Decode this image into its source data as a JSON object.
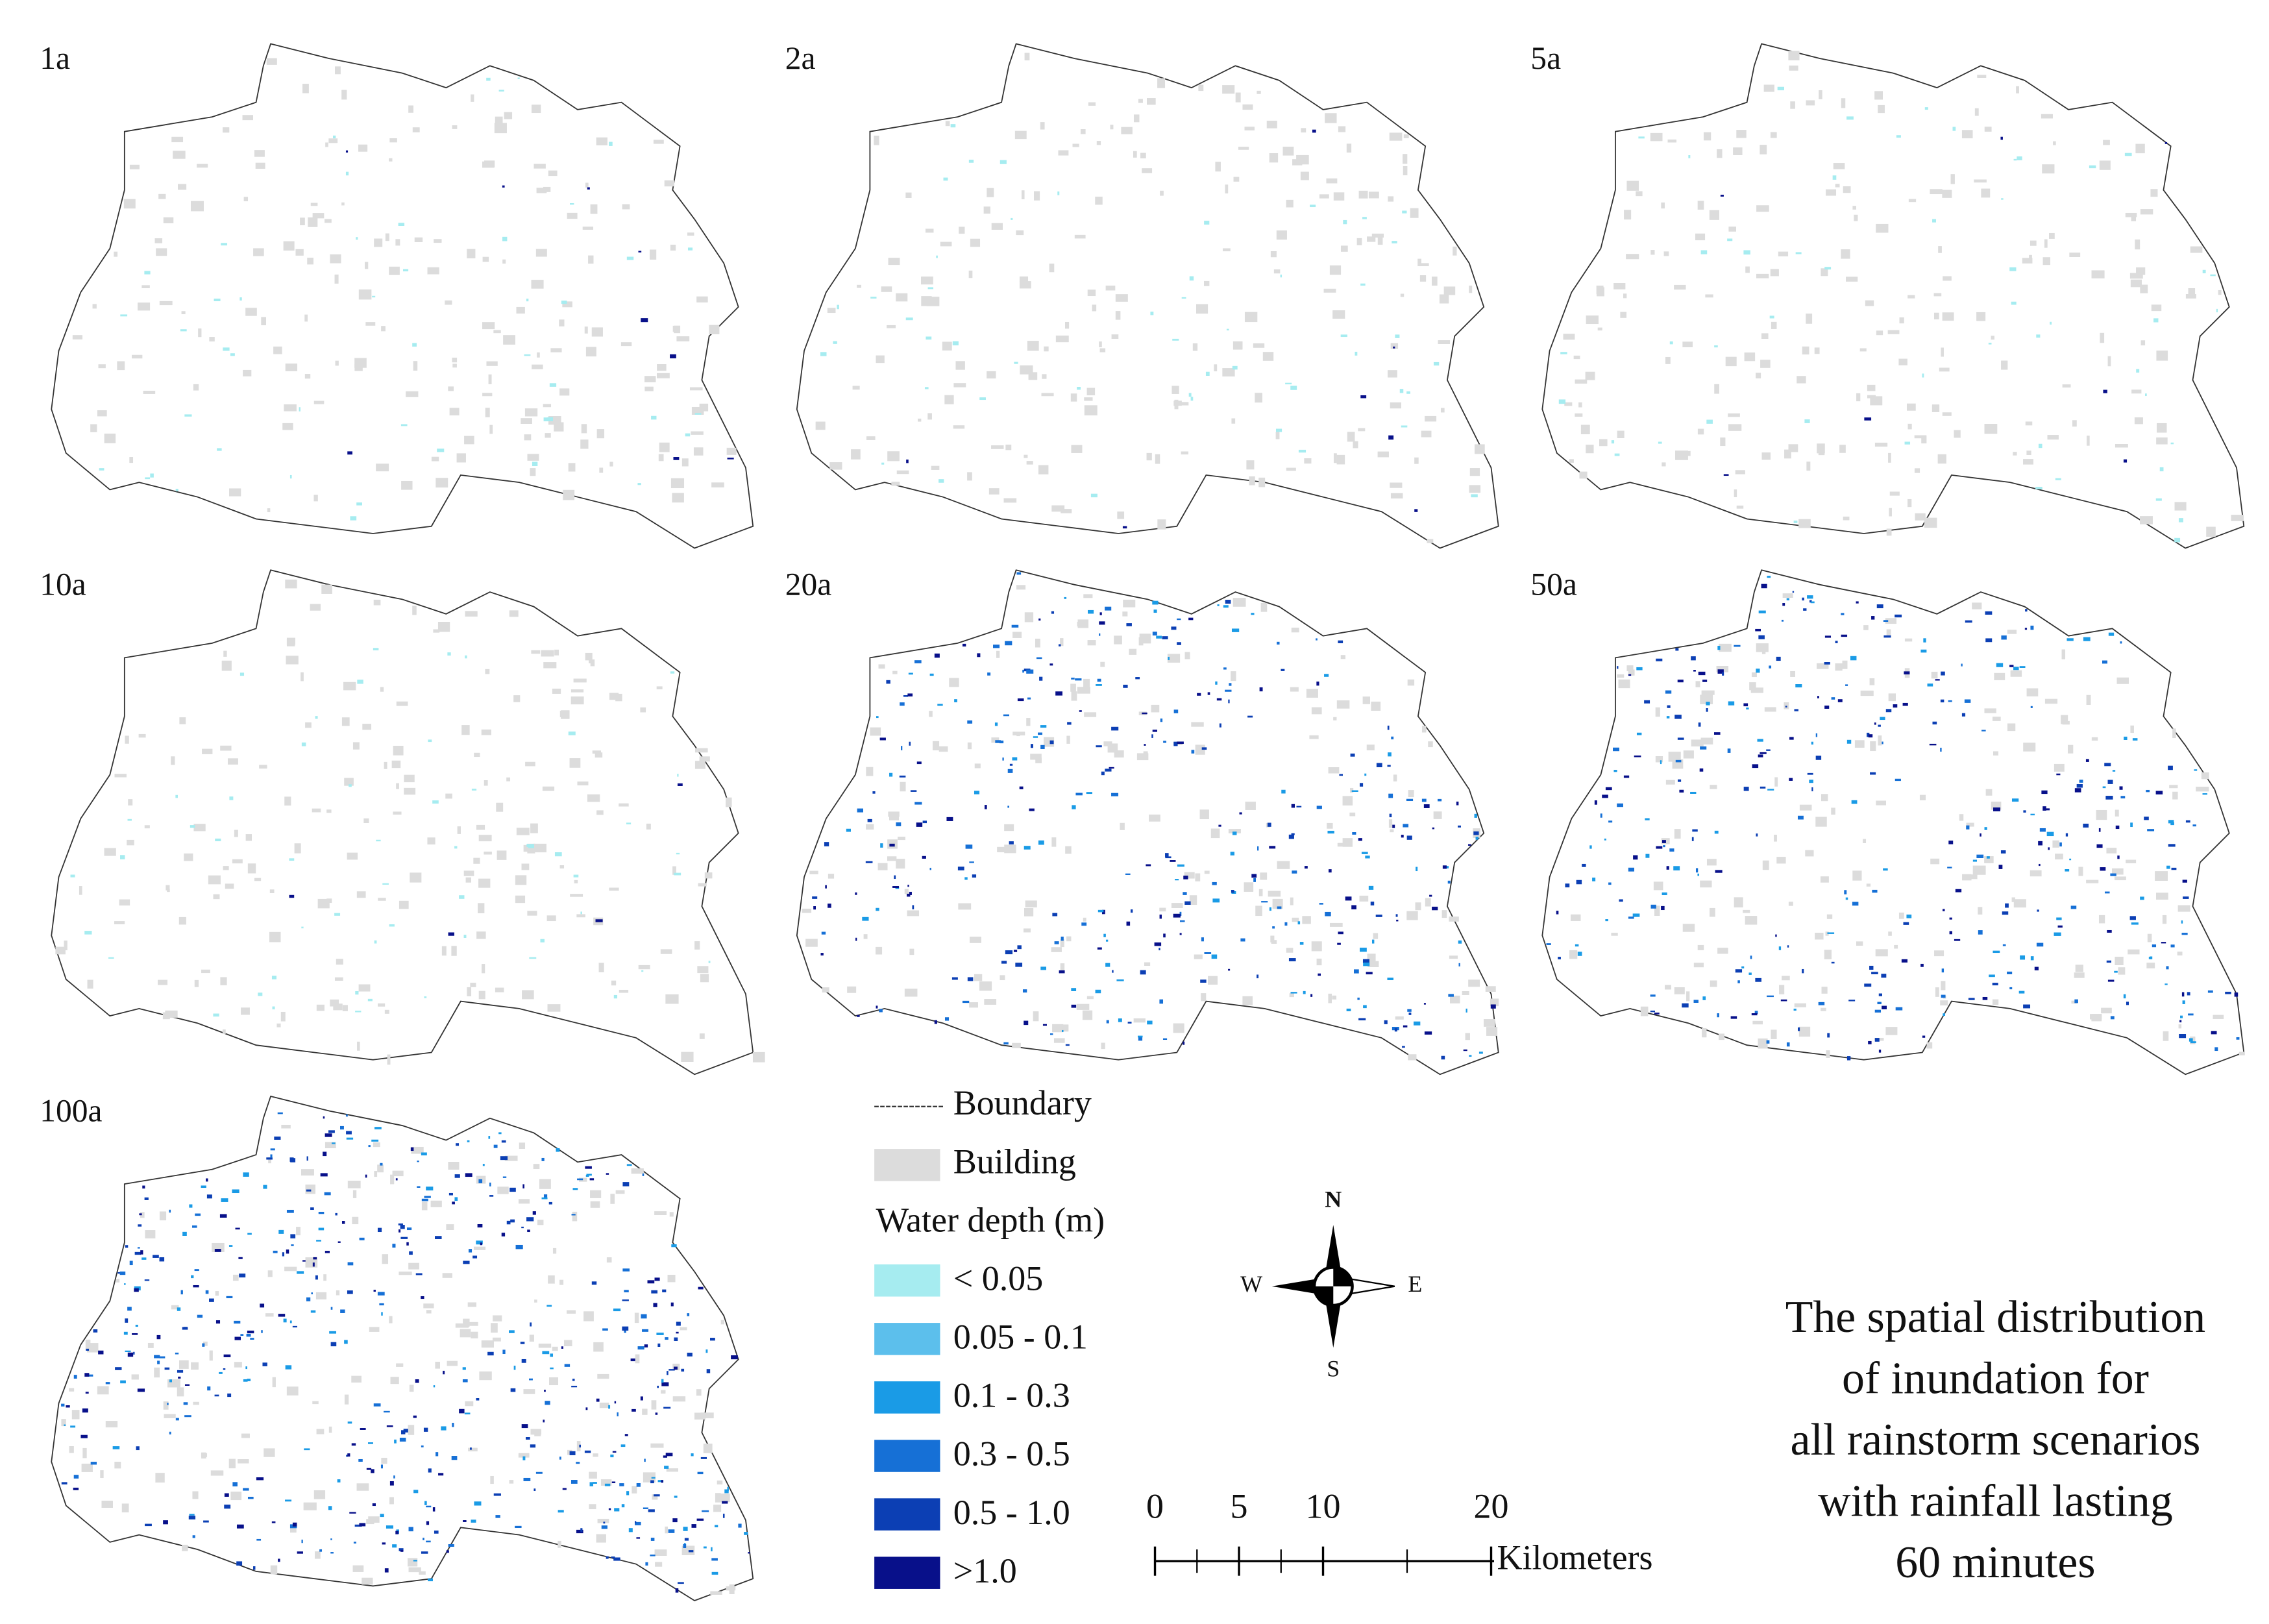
{
  "panels": [
    {
      "label": "1a"
    },
    {
      "label": "2a"
    },
    {
      "label": "5a"
    },
    {
      "label": "10a"
    },
    {
      "label": "20a"
    },
    {
      "label": "50a"
    },
    {
      "label": "100a"
    }
  ],
  "legend": {
    "boundary": "Boundary",
    "building": "Building",
    "building_color": "#dcdcdc",
    "water_title": "Water depth (m)",
    "classes": [
      {
        "label": "< 0.05",
        "color": "#a6ecf0"
      },
      {
        "label": "0.05 - 0.1",
        "color": "#5cbfec"
      },
      {
        "label": "0.1 - 0.3",
        "color": "#1a9be6"
      },
      {
        "label": "0.3 - 0.5",
        "color": "#1670d6"
      },
      {
        "label": "0.5 - 1.0",
        "color": "#0c3fb4"
      },
      {
        "label": ">1.0",
        "color": "#08108a"
      }
    ]
  },
  "compass": {
    "n": "N",
    "s": "S",
    "e": "E",
    "w": "W"
  },
  "scale_bar": {
    "ticks": [
      0,
      5,
      10,
      20
    ],
    "max": 20,
    "unit": "Kilometers"
  },
  "title": [
    "The spatial distribution",
    "of inundation for",
    "all rainstorm scenarios",
    "with rainfall lasting",
    "60 minutes"
  ]
}
